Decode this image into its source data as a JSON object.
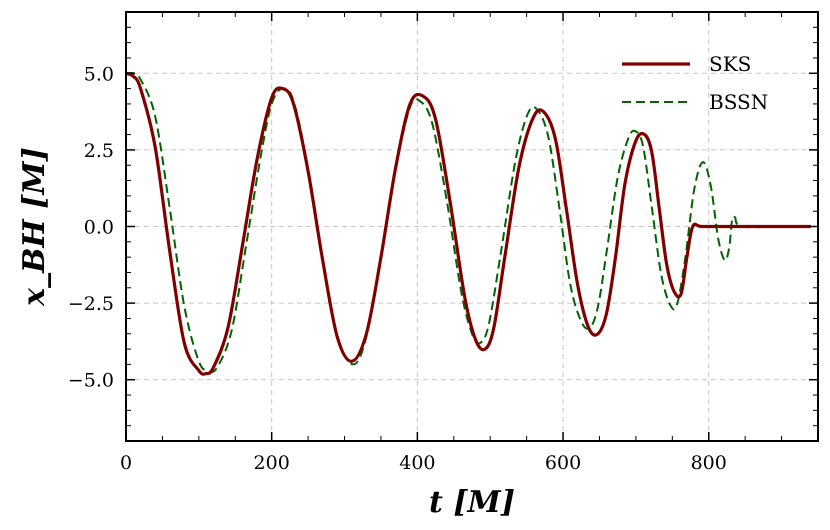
{
  "chart_data": {
    "type": "line",
    "xlabel": "t [M]",
    "ylabel": "x_BH [M]",
    "xlim": [
      0,
      950
    ],
    "ylim": [
      -7,
      7
    ],
    "xticks": [
      0,
      200,
      400,
      600,
      800
    ],
    "yticks": [
      -5.0,
      -2.5,
      0.0,
      2.5,
      5.0
    ],
    "xtick_labels": [
      "0",
      "200",
      "400",
      "600",
      "800"
    ],
    "ytick_labels": [
      "−5.0",
      "−2.5",
      "0.0",
      "2.5",
      "5.0"
    ],
    "grid": true,
    "legend_position": "top-right",
    "series": [
      {
        "name": "SKS",
        "color": "#800000",
        "style": "solid",
        "x": [
          0,
          10,
          20,
          40,
          60,
          80,
          100,
          110,
          120,
          140,
          160,
          180,
          200,
          215,
          230,
          250,
          270,
          290,
          310,
          330,
          350,
          370,
          390,
          408,
          425,
          445,
          465,
          480,
          493,
          505,
          520,
          540,
          560,
          575,
          590,
          605,
          620,
          635,
          648,
          660,
          672,
          685,
          700,
          712,
          722,
          732,
          742,
          752,
          762,
          770,
          778,
          790,
          820,
          860,
          900,
          940
        ],
        "y": [
          5.0,
          4.9,
          4.5,
          2.6,
          -0.8,
          -3.8,
          -4.7,
          -4.8,
          -4.6,
          -3.3,
          -0.6,
          2.2,
          4.2,
          4.5,
          4.0,
          1.8,
          -1.1,
          -3.6,
          -4.4,
          -3.5,
          -1.0,
          1.9,
          4.0,
          4.25,
          3.5,
          0.8,
          -2.3,
          -3.7,
          -4.0,
          -3.3,
          -1.0,
          2.0,
          3.6,
          3.7,
          2.8,
          0.5,
          -1.9,
          -3.3,
          -3.5,
          -2.8,
          -1.0,
          1.4,
          2.8,
          3.0,
          2.4,
          0.6,
          -1.2,
          -2.1,
          -2.2,
          -1.0,
          0.0,
          0.0,
          0.0,
          0.0,
          0.0,
          0.0
        ]
      },
      {
        "name": "BSSN",
        "color": "#006400",
        "style": "dashed",
        "x": [
          0,
          10,
          20,
          40,
          60,
          80,
          100,
          113,
          125,
          145,
          165,
          185,
          200,
          215,
          230,
          250,
          270,
          290,
          312,
          330,
          350,
          370,
          390,
          403,
          420,
          440,
          460,
          475,
          486,
          498,
          515,
          535,
          552,
          565,
          580,
          595,
          610,
          625,
          637,
          648,
          660,
          675,
          690,
          700,
          710,
          722,
          735,
          748,
          757,
          768,
          780,
          792,
          803,
          813,
          822,
          828,
          832,
          836,
          845,
          900,
          940
        ],
        "y": [
          5.0,
          5.0,
          4.8,
          3.6,
          0.6,
          -2.6,
          -4.4,
          -4.7,
          -4.6,
          -3.4,
          -0.6,
          2.3,
          4.0,
          4.5,
          4.1,
          1.9,
          -1.1,
          -3.6,
          -4.5,
          -3.6,
          -1.0,
          1.9,
          3.9,
          4.1,
          3.4,
          0.9,
          -2.1,
          -3.5,
          -3.8,
          -3.2,
          -0.8,
          2.2,
          3.7,
          3.8,
          2.9,
          0.6,
          -1.9,
          -3.1,
          -3.3,
          -2.6,
          -0.8,
          1.6,
          2.9,
          3.1,
          2.6,
          0.6,
          -1.6,
          -2.6,
          -2.5,
          -1.0,
          1.2,
          2.1,
          1.3,
          -0.4,
          -1.1,
          -0.7,
          0.2,
          0.3,
          0.0,
          0.0,
          0.0
        ]
      }
    ]
  }
}
